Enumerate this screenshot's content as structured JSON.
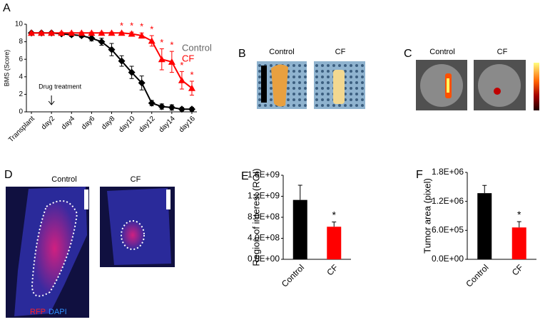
{
  "chart_data": [
    {
      "type": "line",
      "panel": "A",
      "ylabel": "BMS (Score)",
      "x": [
        0,
        1,
        2,
        3,
        4,
        5,
        6,
        7,
        8,
        9,
        10,
        11,
        12,
        13,
        14,
        15,
        16
      ],
      "xlim": [
        -0.5,
        16.5
      ],
      "xticks": [
        {
          "value": 0,
          "label": "Transplant"
        },
        {
          "value": 2,
          "label": "day2"
        },
        {
          "value": 4,
          "label": "day4"
        },
        {
          "value": 6,
          "label": "day6"
        },
        {
          "value": 8,
          "label": "day8"
        },
        {
          "value": 10,
          "label": "day10"
        },
        {
          "value": 12,
          "label": "day12"
        },
        {
          "value": 14,
          "label": "day14"
        },
        {
          "value": 16,
          "label": "day16"
        }
      ],
      "ylim": [
        0,
        10
      ],
      "yticks": [
        0,
        2,
        4,
        6,
        8,
        10
      ],
      "series": [
        {
          "name": "Control",
          "color": "#000000",
          "label_color": "#666666",
          "marker": "diamond",
          "values": [
            9,
            9,
            9,
            8.9,
            8.8,
            8.7,
            8.4,
            8.0,
            7.1,
            5.8,
            4.5,
            3.3,
            1.0,
            0.6,
            0.5,
            0.3,
            0.3
          ],
          "errors": [
            0.1,
            0.1,
            0.1,
            0.15,
            0.2,
            0.2,
            0.3,
            0.4,
            0.7,
            0.6,
            0.7,
            0.8,
            0.3,
            0.3,
            0.3,
            0.2,
            0.2
          ]
        },
        {
          "name": "CF",
          "color": "#ff0000",
          "label_color": "#ff0000",
          "marker": "triangle",
          "values": [
            9,
            9,
            9,
            9,
            9,
            9,
            9,
            9,
            9,
            9,
            8.9,
            8.7,
            8.1,
            6.0,
            5.7,
            3.6,
            2.7
          ],
          "errors": [
            0.1,
            0.1,
            0.1,
            0.1,
            0.1,
            0.1,
            0.1,
            0.1,
            0.1,
            0.1,
            0.2,
            0.3,
            0.6,
            1.2,
            1.2,
            1.0,
            0.8
          ]
        }
      ],
      "annotations": [
        {
          "x": 9,
          "text": "*"
        },
        {
          "x": 10,
          "text": "*"
        },
        {
          "x": 11,
          "text": "*"
        },
        {
          "x": 12,
          "text": "*"
        },
        {
          "x": 13,
          "text": "*"
        },
        {
          "x": 14,
          "text": "*"
        },
        {
          "x": 15,
          "text": "*"
        },
        {
          "x": 16,
          "text": "*"
        }
      ],
      "note": {
        "text": "Drug treatment",
        "x": 2
      }
    },
    {
      "type": "bar",
      "panel": "E",
      "ylabel": "Region of interest (ROI)",
      "categories": [
        "Control",
        "CF"
      ],
      "values": [
        1130000000,
        620000000
      ],
      "errors": [
        280000000,
        90000000
      ],
      "colors": [
        "#000000",
        "#ff0000"
      ],
      "ylim": [
        0,
        1600000000
      ],
      "yticks": [
        {
          "value": 0,
          "label": "0.0E+00"
        },
        {
          "value": 400000000,
          "label": "4.0E+08"
        },
        {
          "value": 800000000,
          "label": "8.0E+08"
        },
        {
          "value": 1200000000,
          "label": "1.2E+09"
        },
        {
          "value": 1600000000,
          "label": "1.6E+09"
        }
      ],
      "annotations": [
        {
          "category": "CF",
          "text": "*"
        }
      ]
    },
    {
      "type": "bar",
      "panel": "F",
      "ylabel": "Tumor area (pixel)",
      "categories": [
        "Control",
        "CF"
      ],
      "values": [
        1370000,
        660000
      ],
      "errors": [
        160000,
        120000
      ],
      "colors": [
        "#000000",
        "#ff0000"
      ],
      "ylim": [
        0,
        1800000
      ],
      "yticks": [
        {
          "value": 0,
          "label": "0.0E+00"
        },
        {
          "value": 600000,
          "label": "6.0E+05"
        },
        {
          "value": 1200000,
          "label": "1.2E+06"
        },
        {
          "value": 1800000,
          "label": "1.8E+06"
        }
      ],
      "annotations": [
        {
          "category": "CF",
          "text": "*"
        }
      ]
    }
  ],
  "images": [
    {
      "panel": "B",
      "labels": [
        "Control",
        "CF"
      ]
    },
    {
      "panel": "C",
      "labels": [
        "Control",
        "CF"
      ]
    },
    {
      "panel": "D",
      "labels": [
        "Control",
        "CF"
      ],
      "stains": [
        "RFP",
        "DAPI"
      ]
    }
  ]
}
